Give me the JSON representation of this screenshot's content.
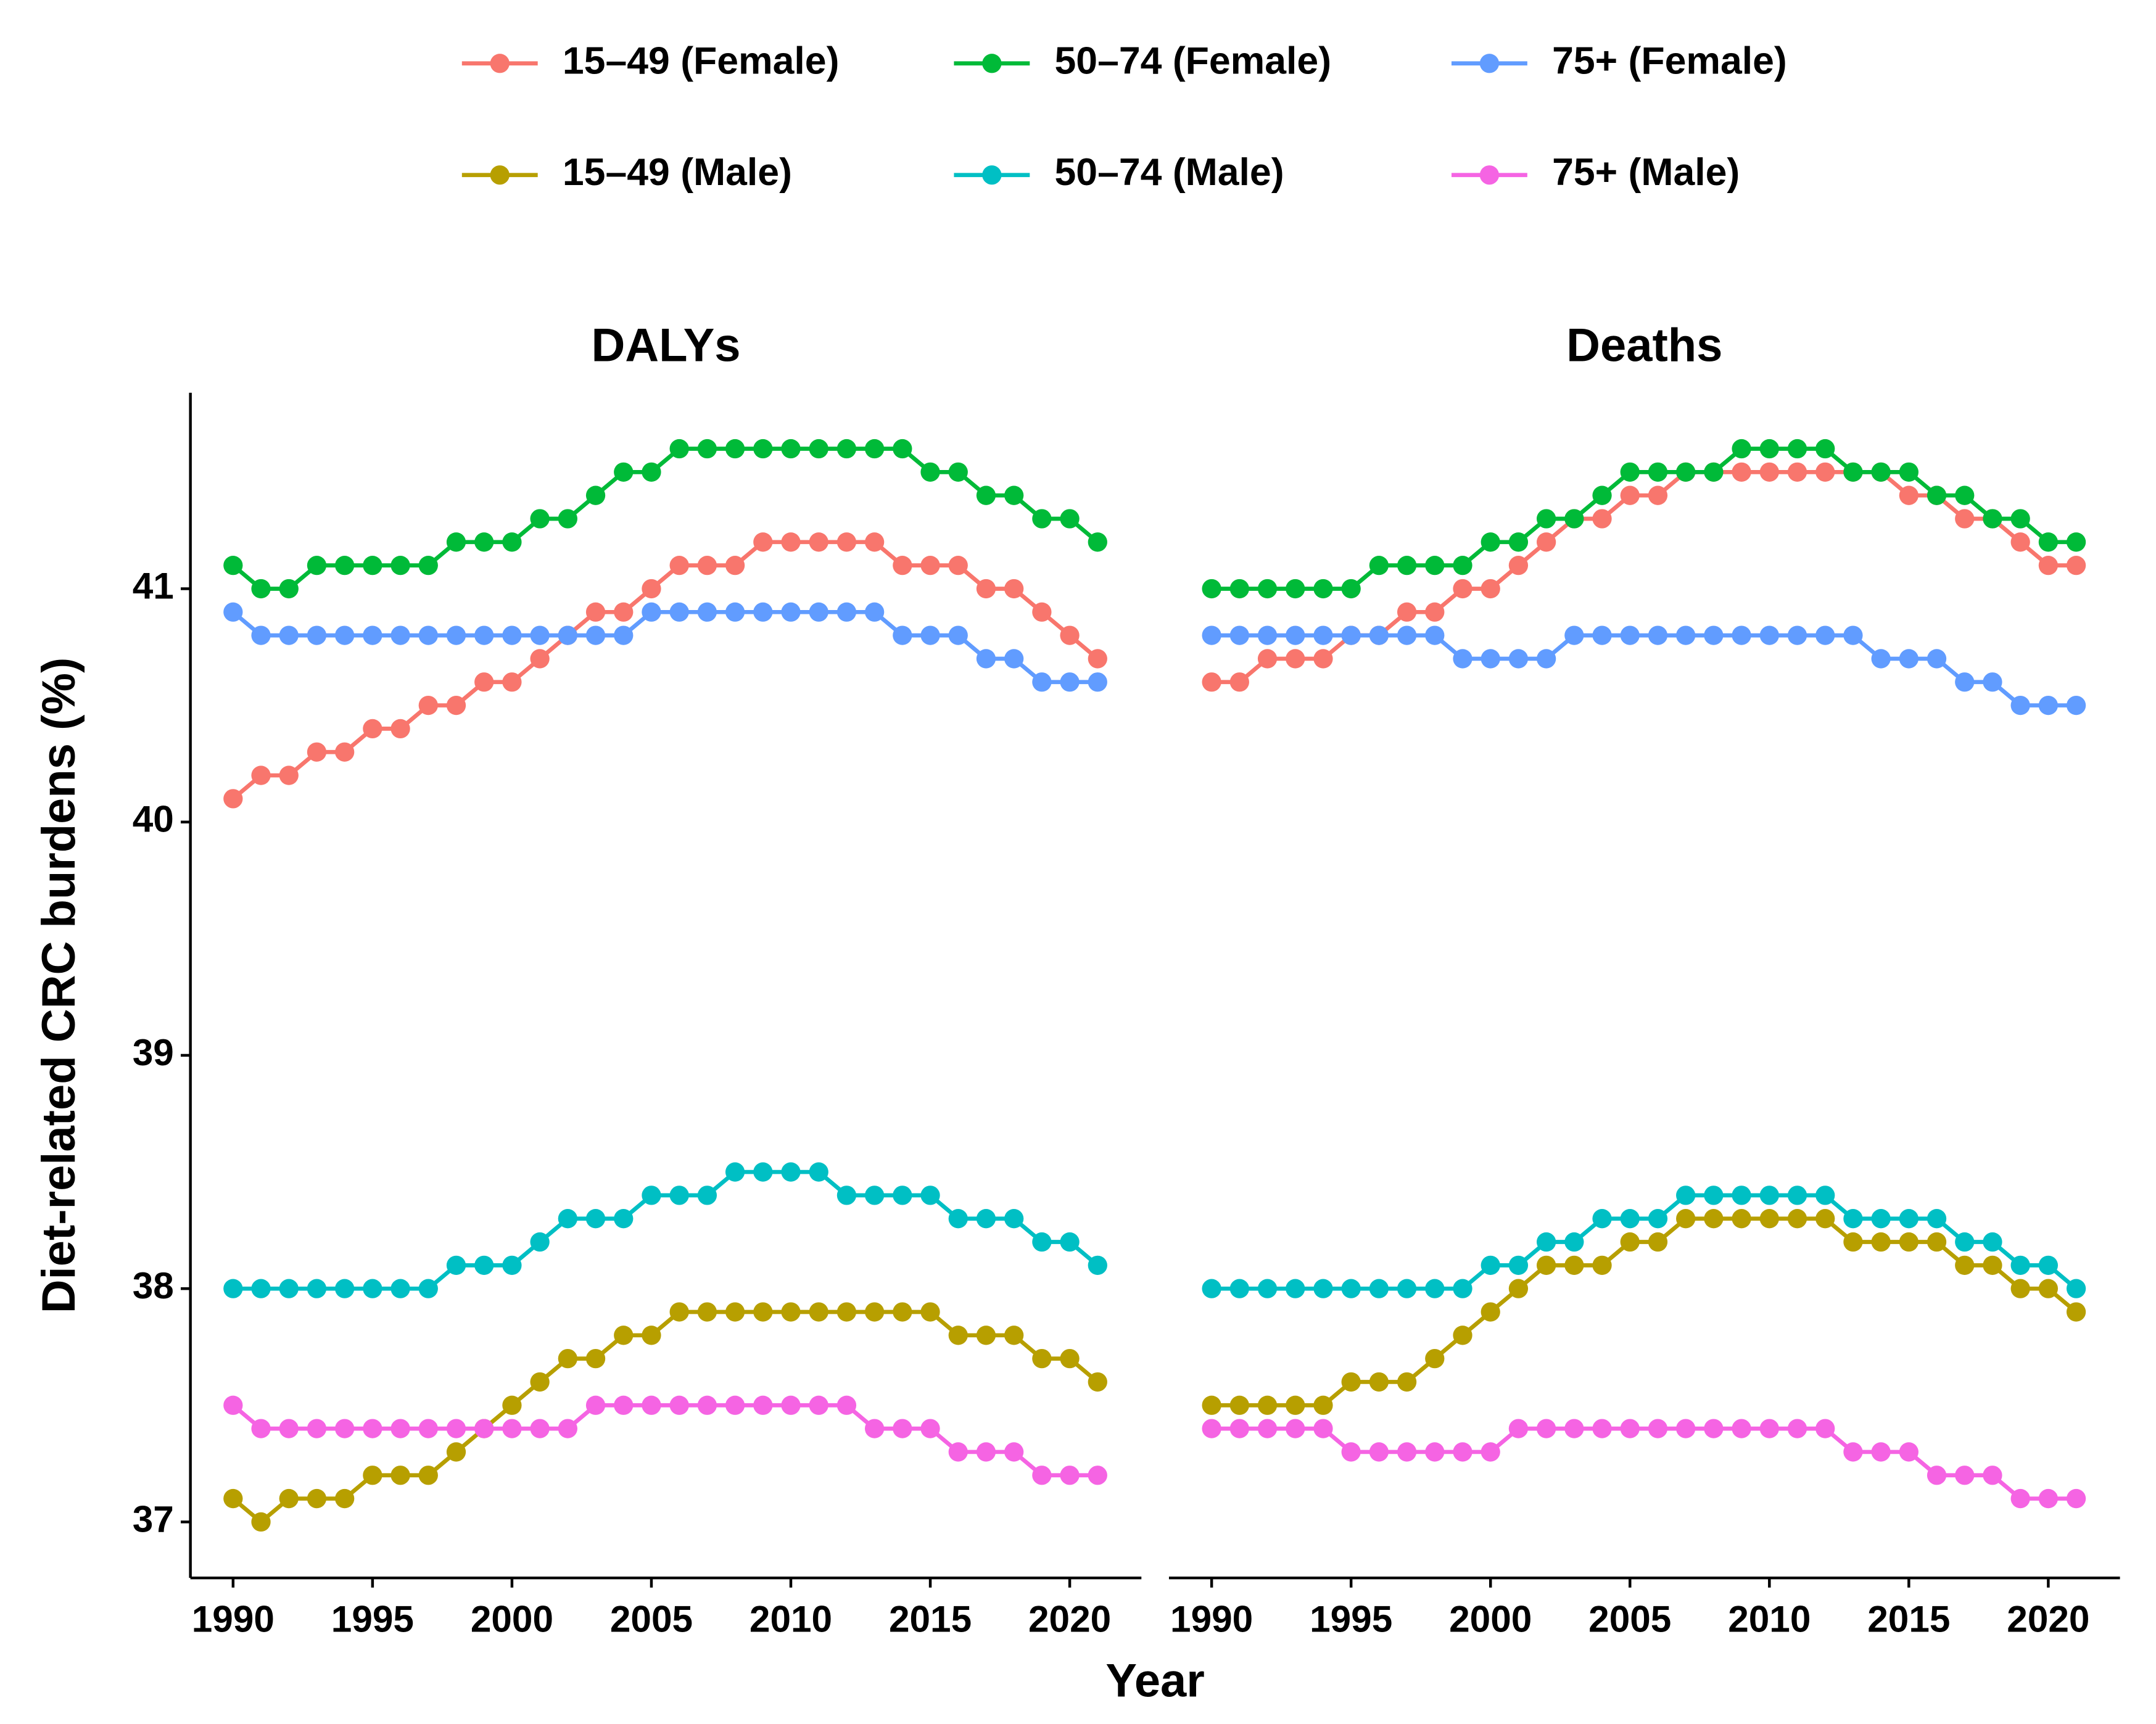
{
  "chart_data": [
    {
      "type": "line",
      "title": "DALYs",
      "x_label": "Year",
      "y_label": "Diet-related CRC burdens (%)",
      "x": [
        1990,
        1991,
        1992,
        1993,
        1994,
        1995,
        1996,
        1997,
        1998,
        1999,
        2000,
        2001,
        2002,
        2003,
        2004,
        2005,
        2006,
        2007,
        2008,
        2009,
        2010,
        2011,
        2012,
        2013,
        2014,
        2015,
        2016,
        2017,
        2018,
        2019,
        2020,
        2021
      ],
      "xlim": [
        1988.47,
        2022.57
      ],
      "xticks": [
        1990,
        1995,
        2000,
        2005,
        2010,
        2015,
        2020
      ],
      "ylim": [
        36.76,
        41.84
      ],
      "yticks": [
        37,
        38,
        39,
        40,
        41
      ],
      "series": [
        {
          "name": "15–49 (Female)",
          "color": "#F8766D",
          "values": [
            40.1,
            40.2,
            40.2,
            40.3,
            40.3,
            40.4,
            40.4,
            40.5,
            40.5,
            40.6,
            40.6,
            40.7,
            40.8,
            40.9,
            40.9,
            41.0,
            41.1,
            41.1,
            41.1,
            41.2,
            41.2,
            41.2,
            41.2,
            41.2,
            41.1,
            41.1,
            41.1,
            41.0,
            41.0,
            40.9,
            40.8,
            40.7
          ]
        },
        {
          "name": "50–74 (Female)",
          "color": "#00BA38",
          "values": [
            41.1,
            41.0,
            41.0,
            41.1,
            41.1,
            41.1,
            41.1,
            41.1,
            41.2,
            41.2,
            41.2,
            41.3,
            41.3,
            41.4,
            41.5,
            41.5,
            41.6,
            41.6,
            41.6,
            41.6,
            41.6,
            41.6,
            41.6,
            41.6,
            41.6,
            41.5,
            41.5,
            41.4,
            41.4,
            41.3,
            41.3,
            41.2
          ]
        },
        {
          "name": "75+ (Female)",
          "color": "#619CFF",
          "values": [
            40.9,
            40.8,
            40.8,
            40.8,
            40.8,
            40.8,
            40.8,
            40.8,
            40.8,
            40.8,
            40.8,
            40.8,
            40.8,
            40.8,
            40.8,
            40.9,
            40.9,
            40.9,
            40.9,
            40.9,
            40.9,
            40.9,
            40.9,
            40.9,
            40.8,
            40.8,
            40.8,
            40.7,
            40.7,
            40.6,
            40.6,
            40.6
          ]
        },
        {
          "name": "15–49 (Male)",
          "color": "#B79F00",
          "values": [
            37.1,
            37.0,
            37.1,
            37.1,
            37.1,
            37.2,
            37.2,
            37.2,
            37.3,
            37.4,
            37.5,
            37.6,
            37.7,
            37.7,
            37.8,
            37.8,
            37.9,
            37.9,
            37.9,
            37.9,
            37.9,
            37.9,
            37.9,
            37.9,
            37.9,
            37.9,
            37.8,
            37.8,
            37.8,
            37.7,
            37.7,
            37.6
          ]
        },
        {
          "name": "50–74 (Male)",
          "color": "#00BFC4",
          "values": [
            38.0,
            38.0,
            38.0,
            38.0,
            38.0,
            38.0,
            38.0,
            38.0,
            38.1,
            38.1,
            38.1,
            38.2,
            38.3,
            38.3,
            38.3,
            38.4,
            38.4,
            38.4,
            38.5,
            38.5,
            38.5,
            38.5,
            38.4,
            38.4,
            38.4,
            38.4,
            38.3,
            38.3,
            38.3,
            38.2,
            38.2,
            38.1
          ]
        },
        {
          "name": "75+ (Male)",
          "color": "#F564E3",
          "values": [
            37.5,
            37.4,
            37.4,
            37.4,
            37.4,
            37.4,
            37.4,
            37.4,
            37.4,
            37.4,
            37.4,
            37.4,
            37.4,
            37.5,
            37.5,
            37.5,
            37.5,
            37.5,
            37.5,
            37.5,
            37.5,
            37.5,
            37.5,
            37.4,
            37.4,
            37.4,
            37.3,
            37.3,
            37.3,
            37.2,
            37.2,
            37.2
          ]
        }
      ]
    },
    {
      "type": "line",
      "title": "Deaths",
      "x": [
        1990,
        1991,
        1992,
        1993,
        1994,
        1995,
        1996,
        1997,
        1998,
        1999,
        2000,
        2001,
        2002,
        2003,
        2004,
        2005,
        2006,
        2007,
        2008,
        2009,
        2010,
        2011,
        2012,
        2013,
        2014,
        2015,
        2016,
        2017,
        2018,
        2019,
        2020,
        2021
      ],
      "xlim": [
        1988.47,
        2022.57
      ],
      "xticks": [
        1990,
        1995,
        2000,
        2005,
        2010,
        2015,
        2020
      ],
      "ylim": [
        36.76,
        41.84
      ],
      "series": [
        {
          "name": "15–49 (Female)",
          "color": "#F8766D",
          "values": [
            40.6,
            40.6,
            40.7,
            40.7,
            40.7,
            40.8,
            40.8,
            40.9,
            40.9,
            41.0,
            41.0,
            41.1,
            41.2,
            41.3,
            41.3,
            41.4,
            41.4,
            41.5,
            41.5,
            41.5,
            41.5,
            41.5,
            41.5,
            41.5,
            41.5,
            41.4,
            41.4,
            41.3,
            41.3,
            41.2,
            41.1,
            41.1
          ]
        },
        {
          "name": "50–74 (Female)",
          "color": "#00BA38",
          "values": [
            41.0,
            41.0,
            41.0,
            41.0,
            41.0,
            41.0,
            41.1,
            41.1,
            41.1,
            41.1,
            41.2,
            41.2,
            41.3,
            41.3,
            41.4,
            41.5,
            41.5,
            41.5,
            41.5,
            41.6,
            41.6,
            41.6,
            41.6,
            41.5,
            41.5,
            41.5,
            41.4,
            41.4,
            41.3,
            41.3,
            41.2,
            41.2
          ]
        },
        {
          "name": "75+ (Female)",
          "color": "#619CFF",
          "values": [
            40.8,
            40.8,
            40.8,
            40.8,
            40.8,
            40.8,
            40.8,
            40.8,
            40.8,
            40.7,
            40.7,
            40.7,
            40.7,
            40.8,
            40.8,
            40.8,
            40.8,
            40.8,
            40.8,
            40.8,
            40.8,
            40.8,
            40.8,
            40.8,
            40.7,
            40.7,
            40.7,
            40.6,
            40.6,
            40.5,
            40.5,
            40.5
          ]
        },
        {
          "name": "15–49 (Male)",
          "color": "#B79F00",
          "values": [
            37.5,
            37.5,
            37.5,
            37.5,
            37.5,
            37.6,
            37.6,
            37.6,
            37.7,
            37.8,
            37.9,
            38.0,
            38.1,
            38.1,
            38.1,
            38.2,
            38.2,
            38.3,
            38.3,
            38.3,
            38.3,
            38.3,
            38.3,
            38.2,
            38.2,
            38.2,
            38.2,
            38.1,
            38.1,
            38.0,
            38.0,
            37.9
          ]
        },
        {
          "name": "50–74 (Male)",
          "color": "#00BFC4",
          "values": [
            38.0,
            38.0,
            38.0,
            38.0,
            38.0,
            38.0,
            38.0,
            38.0,
            38.0,
            38.0,
            38.1,
            38.1,
            38.2,
            38.2,
            38.3,
            38.3,
            38.3,
            38.4,
            38.4,
            38.4,
            38.4,
            38.4,
            38.4,
            38.3,
            38.3,
            38.3,
            38.3,
            38.2,
            38.2,
            38.1,
            38.1,
            38.0
          ]
        },
        {
          "name": "75+ (Male)",
          "color": "#F564E3",
          "values": [
            37.4,
            37.4,
            37.4,
            37.4,
            37.4,
            37.3,
            37.3,
            37.3,
            37.3,
            37.3,
            37.3,
            37.4,
            37.4,
            37.4,
            37.4,
            37.4,
            37.4,
            37.4,
            37.4,
            37.4,
            37.4,
            37.4,
            37.4,
            37.3,
            37.3,
            37.3,
            37.2,
            37.2,
            37.2,
            37.1,
            37.1,
            37.1
          ]
        }
      ]
    }
  ]
}
